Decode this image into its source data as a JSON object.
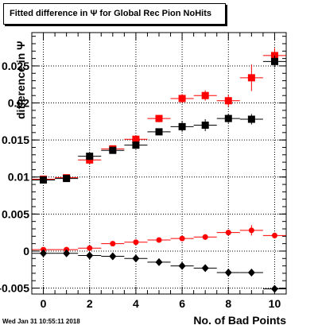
{
  "chart_data": {
    "type": "scatter",
    "title": "Fitted difference in  Ψ  for Global Rec Pion NoHits",
    "xlabel": "No. of Bad Points",
    "ylabel": "difference in  Ψ",
    "xlim": [
      -0.5,
      10.5
    ],
    "ylim": [
      -0.0058,
      0.0295
    ],
    "grid": true,
    "x_ticks": [
      "0",
      "2",
      "4",
      "6",
      "8",
      "10"
    ],
    "y_ticks": [
      "-0.005",
      "0",
      "0.005",
      "0.01",
      "0.015",
      "0.02",
      "0.025"
    ],
    "series": [
      {
        "marker": "square",
        "color": "#ff0000",
        "x": [
          0,
          1,
          2,
          3,
          4,
          5,
          6,
          7,
          8,
          9,
          10
        ],
        "y": [
          0.0097,
          0.0099,
          0.0123,
          0.0138,
          0.0151,
          0.0179,
          0.0206,
          0.021,
          0.0203,
          0.0234,
          0.0264
        ],
        "yerr": [
          0.0003,
          0.0003,
          0.0005,
          0.0004,
          0.0005,
          0.0005,
          0.0006,
          0.0007,
          0.0008,
          0.0018,
          0.001
        ]
      },
      {
        "marker": "square",
        "color": "#000000",
        "x": [
          0,
          1,
          2,
          3,
          4,
          5,
          6,
          7,
          8,
          9,
          10
        ],
        "y": [
          0.0096,
          0.0098,
          0.0128,
          0.0136,
          0.0143,
          0.0161,
          0.0168,
          0.017,
          0.0179,
          0.0178,
          0.0256
        ],
        "yerr": [
          0.0003,
          0.0003,
          0.0004,
          0.0004,
          0.0005,
          0.0004,
          0.0007,
          0.0008,
          0.0006,
          0.0007,
          0.0008
        ]
      },
      {
        "marker": "circle",
        "color": "#ff0000",
        "x": [
          0,
          1,
          2,
          3,
          4,
          5,
          6,
          7,
          8,
          9,
          10
        ],
        "y": [
          0.0002,
          0.0002,
          0.0004,
          0.001,
          0.0012,
          0.0015,
          0.0017,
          0.0019,
          0.0025,
          0.0028,
          0.0021
        ],
        "yerr": [
          0.0002,
          0.0002,
          0.0002,
          0.0003,
          0.0003,
          0.0003,
          0.0003,
          0.0004,
          0.0004,
          0.0007,
          0.0004
        ]
      },
      {
        "marker": "diamond",
        "color": "#000000",
        "x": [
          0,
          1,
          2,
          3,
          4,
          5,
          6,
          7,
          8,
          9,
          10
        ],
        "y": [
          -0.0003,
          -0.0003,
          -0.0006,
          -0.0007,
          -0.001,
          -0.0015,
          -0.002,
          -0.0023,
          -0.0029,
          -0.0029,
          -0.0051
        ],
        "yerr": [
          0.0001,
          0.0001,
          0.0001,
          0.0002,
          0.0002,
          0.0002,
          0.0002,
          0.0002,
          0.0002,
          0.0003,
          0.0003
        ]
      }
    ]
  },
  "footer": {
    "timestamp": "Wed Jan 31 10:55:11 2018"
  }
}
